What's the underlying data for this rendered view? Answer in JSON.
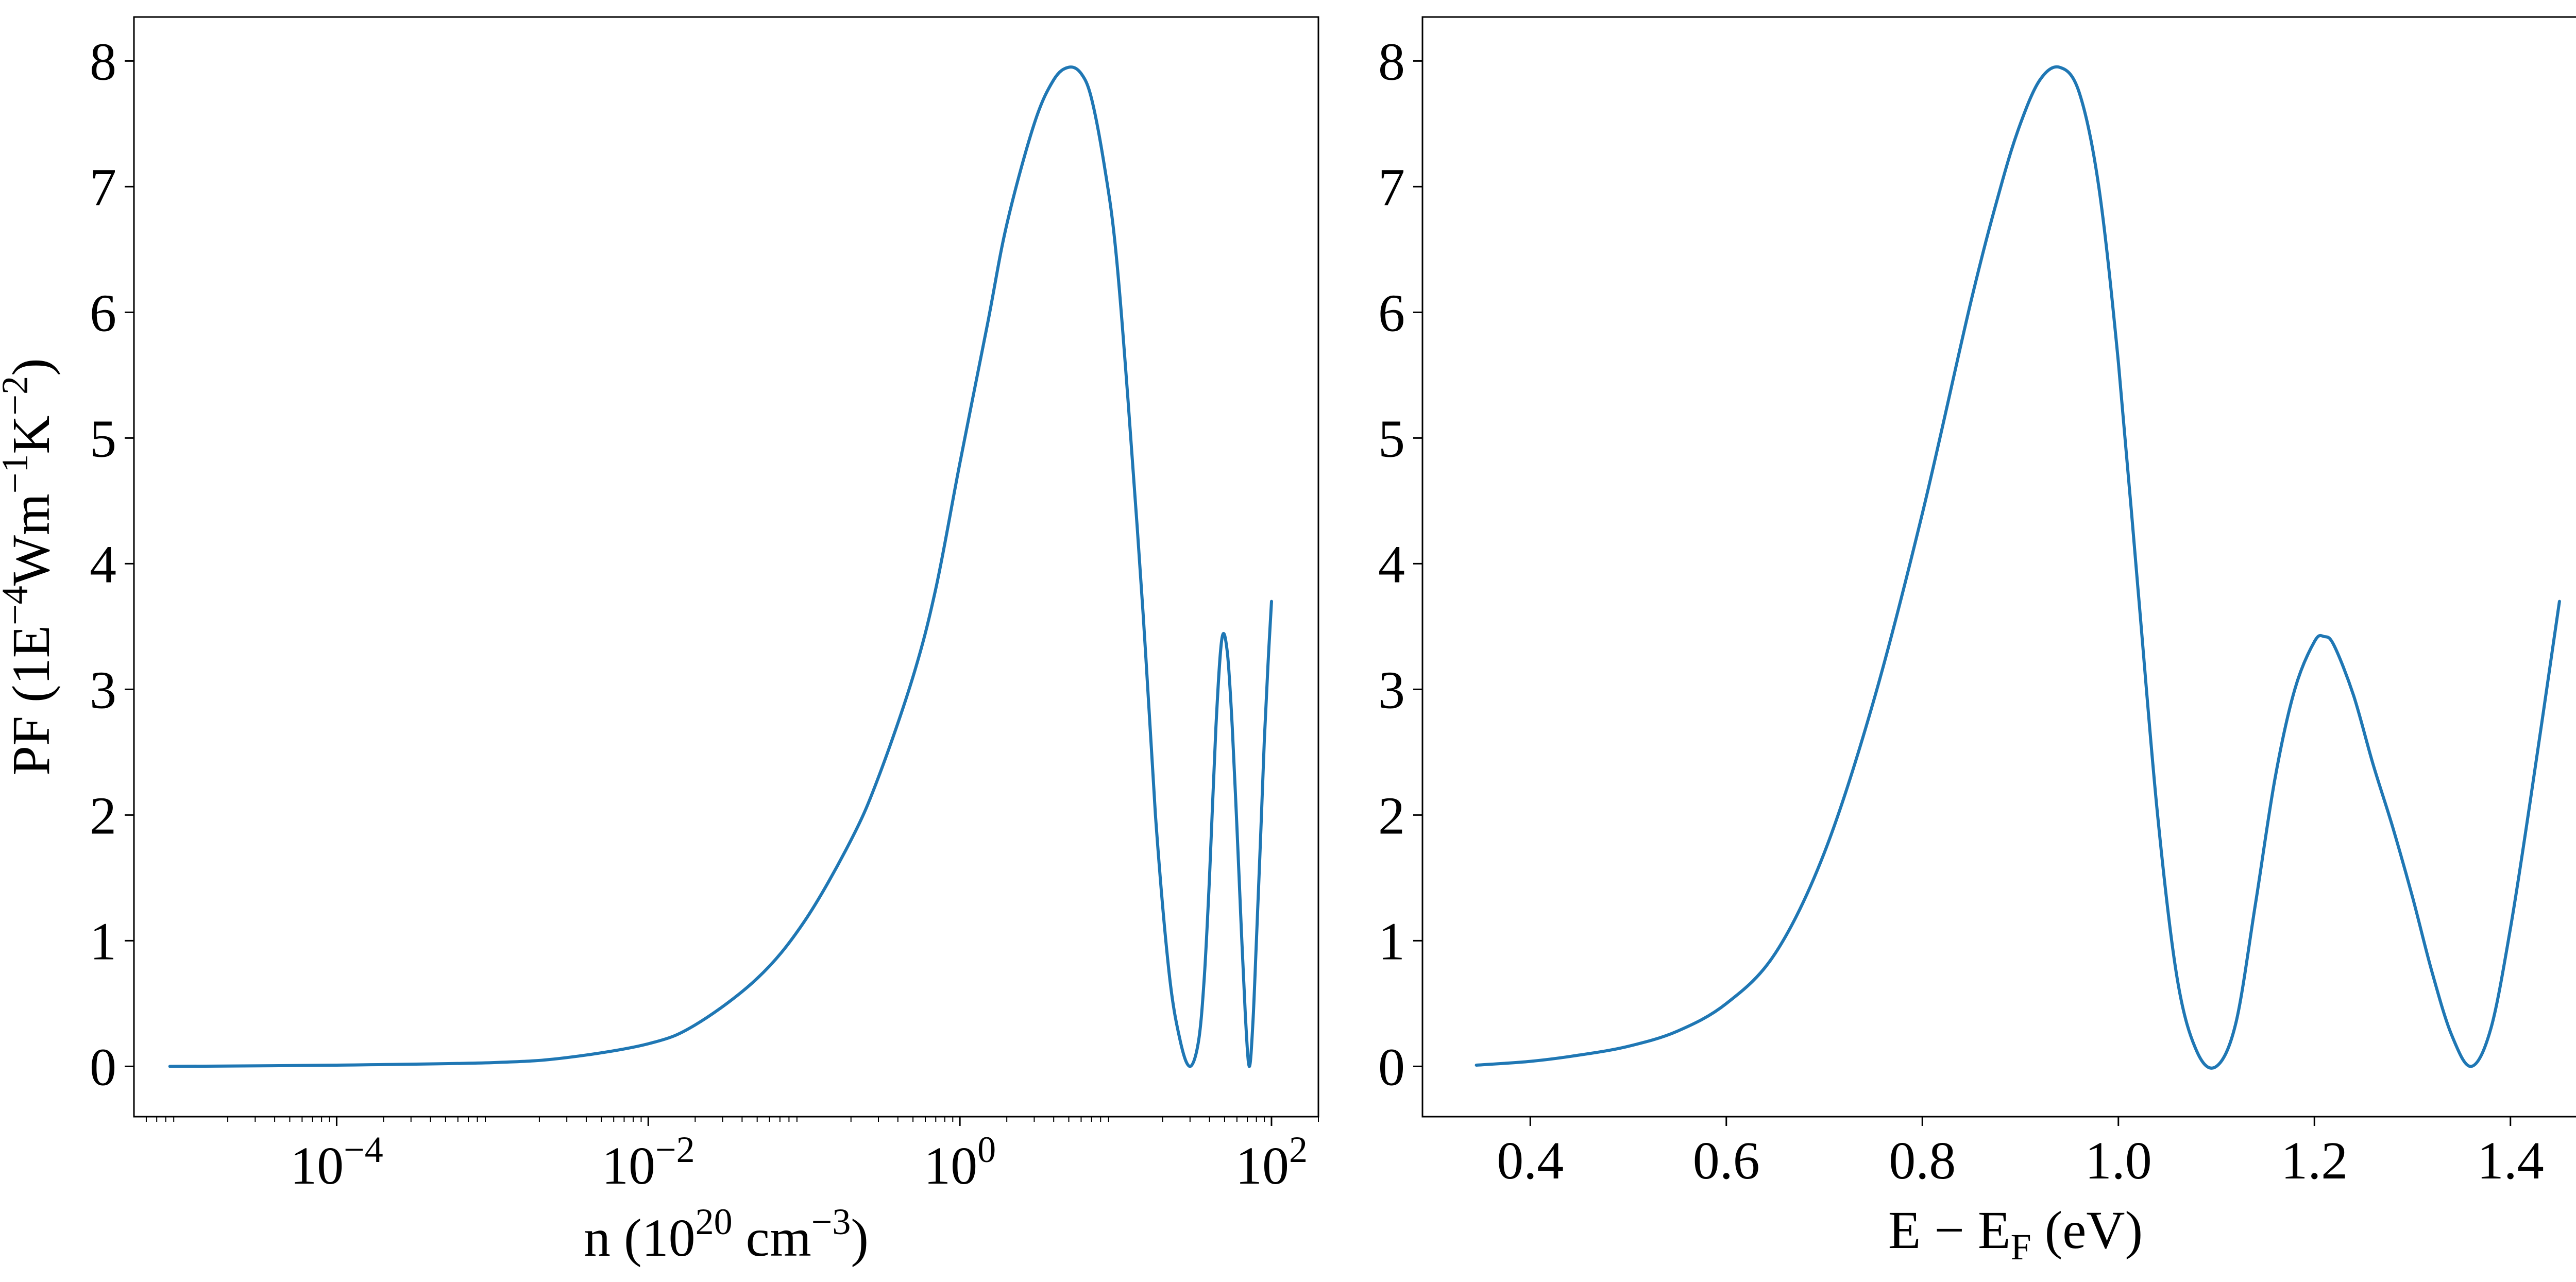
{
  "chart_data": [
    {
      "type": "line",
      "xscale": "log",
      "xlabel": "n (10^20 cm^-3)",
      "ylabel": "PF (1E^-4 Wm^-1 K^-2)",
      "xlim": [
        5e-06,
        200
      ],
      "ylim": [
        -0.4,
        8.35
      ],
      "grid": false,
      "color": "#1f77b4",
      "x_ticks": [
        {
          "value": 0.0001,
          "base": "10",
          "exp": "−4"
        },
        {
          "value": 0.01,
          "base": "10",
          "exp": "−2"
        },
        {
          "value": 1,
          "base": "10",
          "exp": "0"
        },
        {
          "value": 100,
          "base": "10",
          "exp": "2"
        }
      ],
      "y_ticks": [
        0,
        1,
        2,
        3,
        4,
        5,
        6,
        7,
        8
      ],
      "series": [
        {
          "x": [
            8.5e-06,
            0.0001,
            0.001,
            0.003,
            0.01,
            0.02,
            0.05,
            0.1,
            0.2,
            0.3,
            0.5,
            0.7,
            1.0,
            1.5,
            2.0,
            3.0,
            4.0,
            5.0,
            6.0,
            7.0,
            8.5,
            10,
            12,
            15,
            18,
            22,
            26,
            30,
            34,
            37,
            40,
            44,
            48,
            52,
            56,
            60,
            64,
            68,
            72,
            76,
            80,
            85,
            90,
            95,
            100
          ],
          "y": [
            0.0,
            0.01,
            0.03,
            0.07,
            0.18,
            0.33,
            0.7,
            1.15,
            1.8,
            2.3,
            3.1,
            3.8,
            4.8,
            5.9,
            6.7,
            7.5,
            7.85,
            7.95,
            7.9,
            7.7,
            7.15,
            6.5,
            5.3,
            3.6,
            2.0,
            0.75,
            0.2,
            0.0,
            0.2,
            0.7,
            1.5,
            2.7,
            3.4,
            3.3,
            2.7,
            1.9,
            1.1,
            0.4,
            0.0,
            0.35,
            1.0,
            1.8,
            2.6,
            3.2,
            3.7
          ]
        }
      ]
    },
    {
      "type": "line",
      "xscale": "linear",
      "xlabel": "E − E_F (eV)",
      "ylabel": "",
      "xlim": [
        0.29,
        1.5
      ],
      "ylim": [
        -0.4,
        8.35
      ],
      "grid": false,
      "color": "#1f77b4",
      "x_ticks": [
        "0.4",
        "0.6",
        "0.8",
        "1.0",
        "1.2",
        "1.4"
      ],
      "y_ticks": [
        0,
        1,
        2,
        3,
        4,
        5,
        6,
        7,
        8
      ],
      "series": [
        {
          "x": [
            0.345,
            0.4,
            0.45,
            0.5,
            0.55,
            0.6,
            0.65,
            0.7,
            0.75,
            0.8,
            0.85,
            0.88,
            0.9,
            0.92,
            0.94,
            0.96,
            0.98,
            1.0,
            1.02,
            1.04,
            1.06,
            1.08,
            1.1,
            1.12,
            1.14,
            1.16,
            1.18,
            1.2,
            1.21,
            1.22,
            1.24,
            1.26,
            1.28,
            1.3,
            1.32,
            1.34,
            1.36,
            1.38,
            1.4,
            1.42,
            1.45
          ],
          "y": [
            0.01,
            0.04,
            0.09,
            0.16,
            0.28,
            0.5,
            0.9,
            1.7,
            2.9,
            4.4,
            6.1,
            7.0,
            7.5,
            7.85,
            7.95,
            7.75,
            7.0,
            5.6,
            3.8,
            2.0,
            0.7,
            0.12,
            0.0,
            0.35,
            1.3,
            2.3,
            3.0,
            3.38,
            3.42,
            3.35,
            2.95,
            2.4,
            1.9,
            1.35,
            0.75,
            0.25,
            0.0,
            0.3,
            1.1,
            2.1,
            3.7
          ]
        }
      ]
    }
  ]
}
